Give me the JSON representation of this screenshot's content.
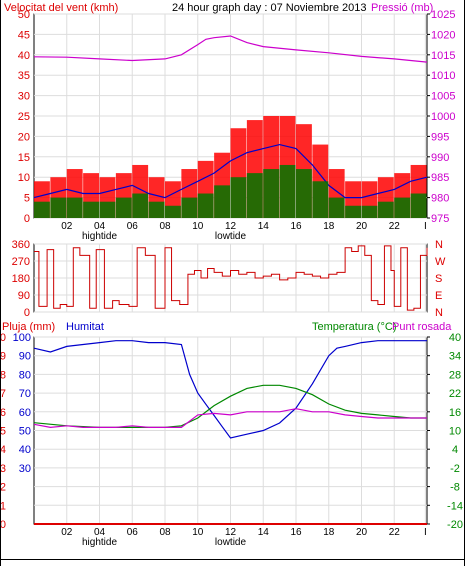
{
  "chart_data": [
    {
      "type": "line",
      "header": {
        "left_label": "Velocitat del vent (kmh)",
        "center_label": "24 hour graph day : 07 Noviembre 2013",
        "right_label": "Pressió (mb)"
      },
      "x_axis": {
        "range": [
          0,
          24
        ],
        "tick_labels": [
          {
            "x": 2,
            "label": "02"
          },
          {
            "x": 4,
            "label": "04"
          },
          {
            "x": 6,
            "label": "06"
          },
          {
            "x": 8,
            "label": "08"
          },
          {
            "x": 10,
            "label": "10"
          },
          {
            "x": 12,
            "label": "12"
          },
          {
            "x": 14,
            "label": "14"
          },
          {
            "x": 16,
            "label": "16"
          },
          {
            "x": 18,
            "label": "18"
          },
          {
            "x": 20,
            "label": "20"
          },
          {
            "x": 22,
            "label": "22"
          },
          {
            "x": 23.9,
            "label": "I"
          }
        ],
        "annotations": [
          {
            "x": 4,
            "label": "hightide"
          },
          {
            "x": 12,
            "label": "lowtide"
          }
        ]
      },
      "y_left": {
        "range": [
          0,
          50
        ],
        "ticks": [
          "0",
          "5",
          "10",
          "15",
          "20",
          "25",
          "30",
          "35",
          "40",
          "45",
          "50"
        ],
        "color": "#dd0000"
      },
      "y_right": {
        "range": [
          975,
          1025
        ],
        "ticks": [
          "975",
          "980",
          "985",
          "990",
          "995",
          "1000",
          "1005",
          "1010",
          "1015",
          "1020",
          "1025"
        ],
        "color": "#cc00cc"
      },
      "series": [
        {
          "key": "gust",
          "color": "#ff0000",
          "style": "bars",
          "axis": "left",
          "x": [
            0,
            1,
            2,
            3,
            4,
            5,
            6,
            7,
            8,
            9,
            10,
            11,
            12,
            13,
            14,
            15,
            16,
            17,
            18,
            19,
            20,
            21,
            22,
            23,
            24
          ],
          "values": [
            9,
            10,
            12,
            11,
            10,
            11,
            13,
            10,
            9,
            12,
            14,
            16,
            22,
            24,
            25,
            25,
            23,
            18,
            12,
            9,
            9,
            10,
            11,
            13,
            15
          ]
        },
        {
          "key": "speed",
          "color": "#0000cc",
          "style": "line",
          "axis": "left",
          "x": [
            0,
            1,
            2,
            3,
            4,
            5,
            6,
            7,
            8,
            9,
            10,
            11,
            12,
            13,
            14,
            15,
            16,
            17,
            18,
            19,
            20,
            21,
            22,
            23,
            24
          ],
          "values": [
            5,
            6,
            7,
            6,
            6,
            7,
            8,
            6,
            5,
            7,
            9,
            11,
            14,
            16,
            17,
            18,
            17,
            13,
            8,
            5,
            5,
            6,
            7,
            9,
            10
          ]
        },
        {
          "key": "average",
          "color": "#007700",
          "style": "bars",
          "axis": "left",
          "x": [
            0,
            1,
            2,
            3,
            4,
            5,
            6,
            7,
            8,
            9,
            10,
            11,
            12,
            13,
            14,
            15,
            16,
            17,
            18,
            19,
            20,
            21,
            22,
            23,
            24
          ],
          "values": [
            4,
            5,
            5,
            4,
            4,
            5,
            6,
            4,
            3,
            5,
            6,
            8,
            10,
            11,
            12,
            13,
            12,
            9,
            5,
            3,
            3,
            4,
            5,
            6,
            7
          ]
        },
        {
          "key": "pressure",
          "color": "#cc00cc",
          "style": "line",
          "axis": "right",
          "x": [
            0,
            2,
            4,
            6,
            8,
            9,
            10,
            10.5,
            11,
            12,
            13,
            14,
            16,
            18,
            20,
            22,
            23,
            24
          ],
          "values": [
            1014.5,
            1014.4,
            1014,
            1013.6,
            1014,
            1015,
            1017.5,
            1018.8,
            1019.2,
            1019.6,
            1018,
            1017,
            1016.2,
            1015.5,
            1014.6,
            1014,
            1013.6,
            1013.2
          ]
        }
      ]
    },
    {
      "type": "line",
      "x_axis": {
        "range": [
          0,
          24
        ]
      },
      "y_left": {
        "range": [
          0,
          360
        ],
        "ticks": [
          "0",
          "90",
          "180",
          "270",
          "360"
        ]
      },
      "y_right_labels": [
        "N",
        "E",
        "S",
        "W",
        "N"
      ],
      "series": [
        {
          "key": "direction",
          "color": "#cc0000",
          "style": "step",
          "axis": "left",
          "x": [
            0,
            0.3,
            0.8,
            1.2,
            1.6,
            2.0,
            2.4,
            2.8,
            3.4,
            3.8,
            4.3,
            4.8,
            5.2,
            5.8,
            6.3,
            6.8,
            7.4,
            8.0,
            8.4,
            8.9,
            9.4,
            9.8,
            10.2,
            10.6,
            11.0,
            11.5,
            12.0,
            12.5,
            13.0,
            13.5,
            14.0,
            14.5,
            15.0,
            15.5,
            16.0,
            16.5,
            17.0,
            17.5,
            18.0,
            18.5,
            19.0,
            19.4,
            19.8,
            20.2,
            20.6,
            21.0,
            21.4,
            21.8,
            22.0,
            22.4,
            22.8,
            23.2,
            23.6,
            24.0
          ],
          "values": [
            320,
            30,
            330,
            20,
            40,
            30,
            340,
            300,
            20,
            330,
            20,
            60,
            40,
            30,
            340,
            300,
            20,
            340,
            60,
            40,
            200,
            220,
            180,
            230,
            210,
            190,
            220,
            200,
            210,
            180,
            190,
            200,
            170,
            180,
            210,
            200,
            190,
            180,
            200,
            210,
            340,
            320,
            350,
            300,
            60,
            40,
            350,
            220,
            30,
            340,
            10,
            20,
            300,
            340
          ]
        }
      ]
    },
    {
      "type": "line",
      "header": {
        "left_label": "Pluja (mm)",
        "left_label_2": "Humitat",
        "right_label": "Temperatura (°C)",
        "right_label_2": "Punt rosada"
      },
      "x_axis": {
        "range": [
          0,
          24
        ]
      },
      "y_left": {
        "range": [
          0,
          100
        ],
        "ticks_rain": [
          "0",
          "1",
          "2",
          "3",
          "4",
          "5",
          "6",
          "7",
          "8",
          "9",
          "10"
        ],
        "ticks_humidity": [
          "30",
          "40",
          "50",
          "60",
          "70",
          "80",
          "90",
          "100"
        ]
      },
      "y_right": {
        "range": [
          -20,
          40
        ],
        "ticks": [
          "-20",
          "-14",
          "-8",
          "-2",
          "4",
          "10",
          "16",
          "22",
          "28",
          "34",
          "40"
        ]
      },
      "series": [
        {
          "key": "rain",
          "color": "#dd0000",
          "style": "line",
          "axis": "left",
          "x": [
            0,
            24
          ],
          "values": [
            0,
            0
          ]
        },
        {
          "key": "humidity",
          "color": "#0000cc",
          "style": "line",
          "axis": "left",
          "x": [
            0,
            1,
            2,
            3,
            4,
            5,
            6,
            7,
            8,
            9,
            9.5,
            10,
            10.5,
            11,
            11.5,
            12,
            13,
            14,
            15,
            16,
            17,
            18,
            18.5,
            19,
            20,
            21,
            22,
            23,
            24
          ],
          "values": [
            94,
            92,
            95,
            96,
            97,
            98,
            98,
            97,
            97,
            96,
            80,
            70,
            64,
            58,
            52,
            46,
            48,
            50,
            54,
            62,
            75,
            90,
            94,
            95,
            97,
            98,
            98,
            98,
            98
          ]
        },
        {
          "key": "temperature",
          "color": "#008800",
          "style": "line",
          "axis": "right",
          "x": [
            0,
            2,
            4,
            6,
            8,
            9,
            10,
            11,
            12,
            13,
            14,
            15,
            16,
            17,
            18,
            19,
            20,
            21,
            22,
            23,
            24
          ],
          "values": [
            12.5,
            11.5,
            11,
            11,
            11,
            11.5,
            14,
            18,
            21,
            23.5,
            24.5,
            24.5,
            23.5,
            21.5,
            18.5,
            16.5,
            15.5,
            15,
            14.5,
            14,
            14
          ]
        },
        {
          "key": "dewpoint",
          "color": "#cc00cc",
          "style": "line",
          "axis": "right",
          "x": [
            0,
            1,
            2,
            3,
            4,
            5,
            6,
            7,
            8,
            9,
            10,
            11,
            12,
            13,
            14,
            15,
            16,
            17,
            18,
            19,
            20,
            21,
            22,
            23,
            24
          ],
          "values": [
            12,
            11,
            11.5,
            11,
            11,
            11,
            11.5,
            11,
            11,
            11,
            15,
            15.5,
            15,
            16,
            16,
            16,
            17,
            16,
            16,
            15,
            14.5,
            14,
            14,
            14,
            14
          ]
        }
      ]
    }
  ]
}
